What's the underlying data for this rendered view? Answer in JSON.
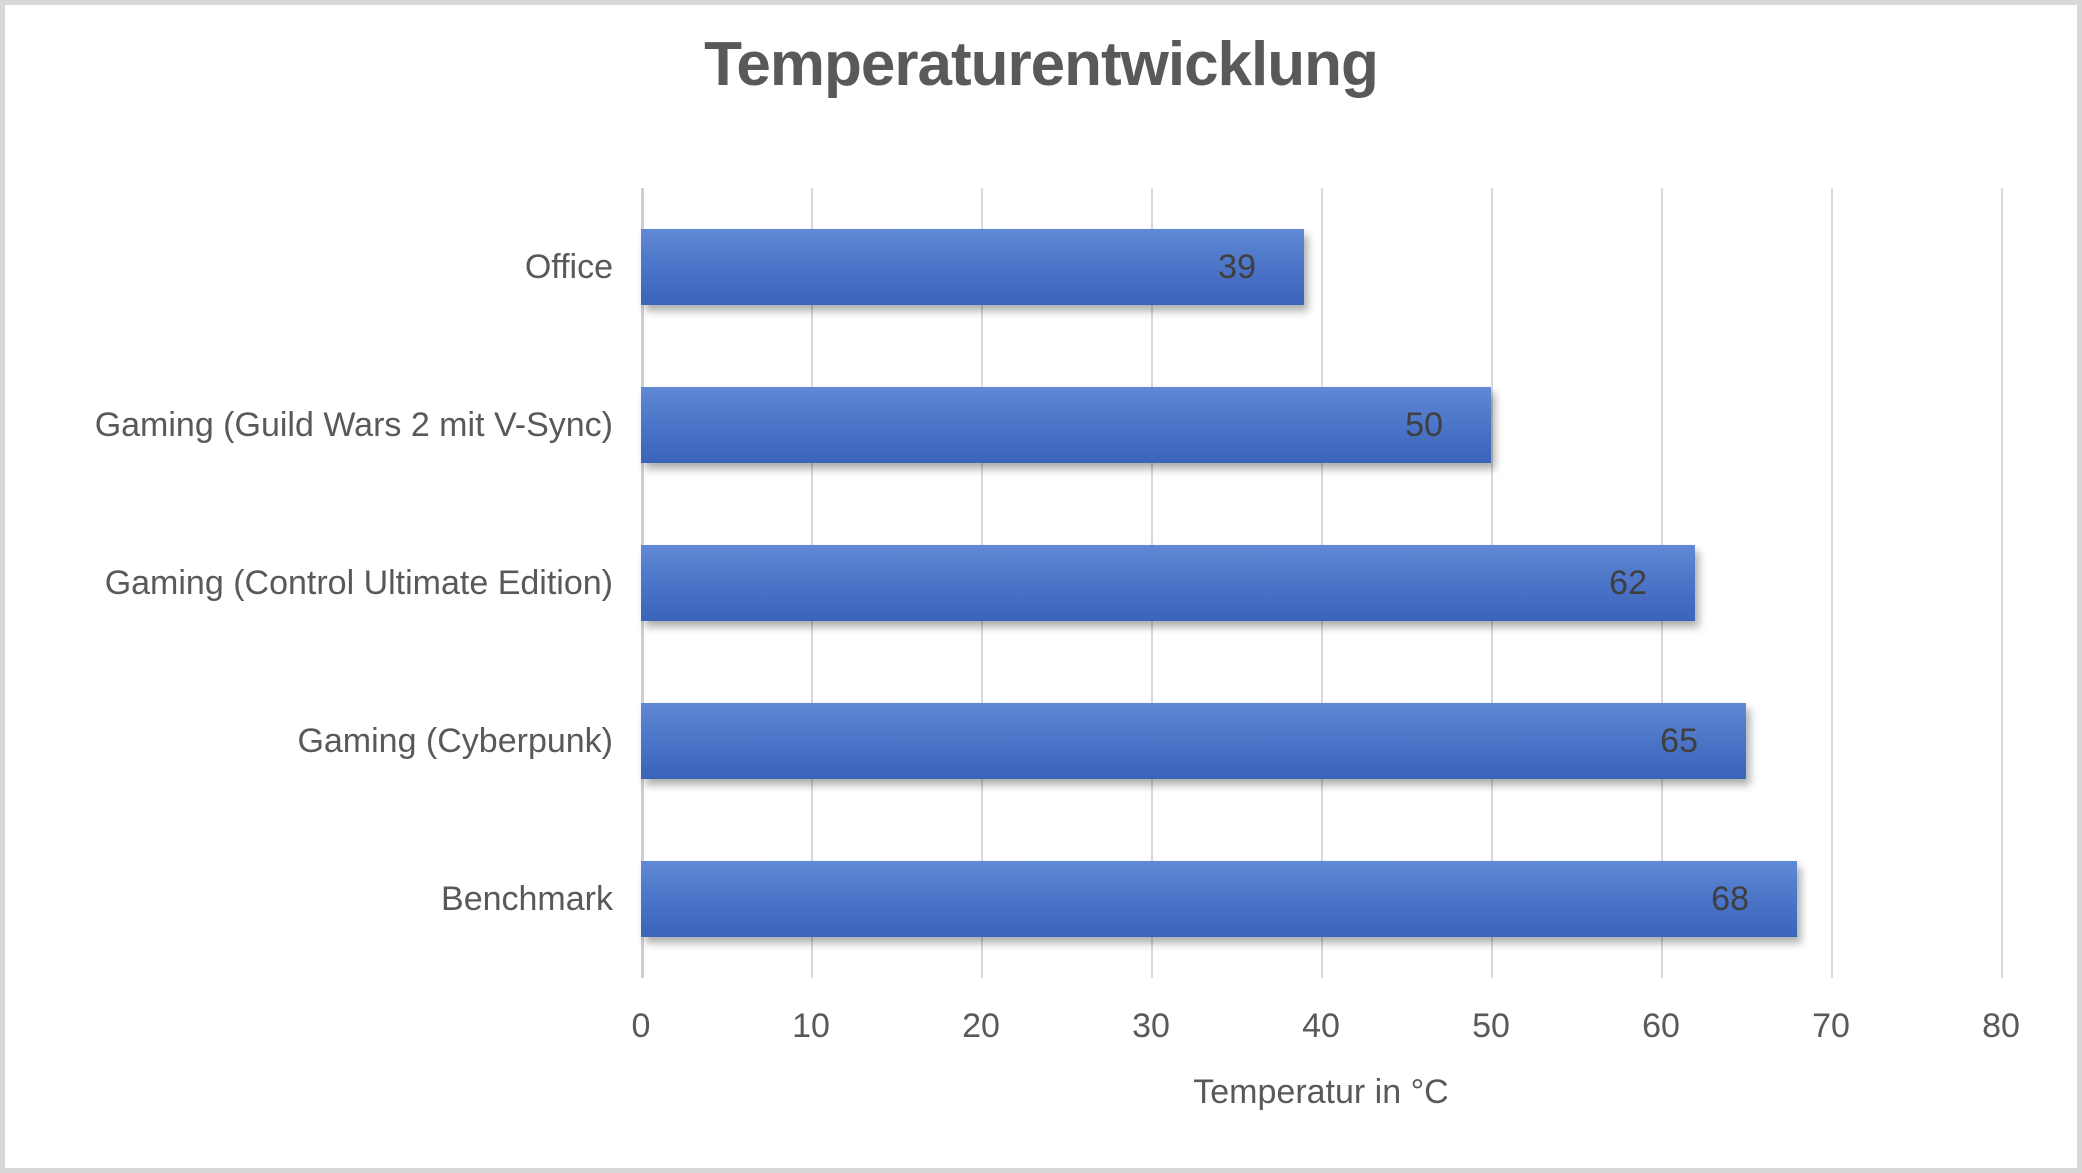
{
  "chart_data": {
    "type": "bar",
    "orientation": "horizontal",
    "title": "Temperaturentwicklung",
    "categories": [
      "Office",
      "Gaming (Guild Wars 2 mit V-Sync)",
      "Gaming (Control Ultimate Edition)",
      "Gaming (Cyberpunk)",
      "Benchmark"
    ],
    "values": [
      39,
      50,
      62,
      65,
      68
    ],
    "data_labels": [
      "39",
      "50",
      "62",
      "65",
      "68"
    ],
    "xlabel": "Temperatur in °C",
    "xlim": [
      0,
      80
    ],
    "xticks": [
      "0",
      "10",
      "20",
      "30",
      "40",
      "50",
      "60",
      "70",
      "80"
    ],
    "grid": true,
    "legend": false,
    "colors": {
      "bar_gradient_top": "#6089d6",
      "bar_gradient_mid": "#4a72c6",
      "bar_gradient_bottom": "#3b64ba",
      "bar_value_label": "#3f3f3f",
      "axis_text": "#595959",
      "title_text": "#595959",
      "gridline": "#d9d9d9",
      "frame_border": "#d8d8d8",
      "background": "#ffffff"
    }
  }
}
